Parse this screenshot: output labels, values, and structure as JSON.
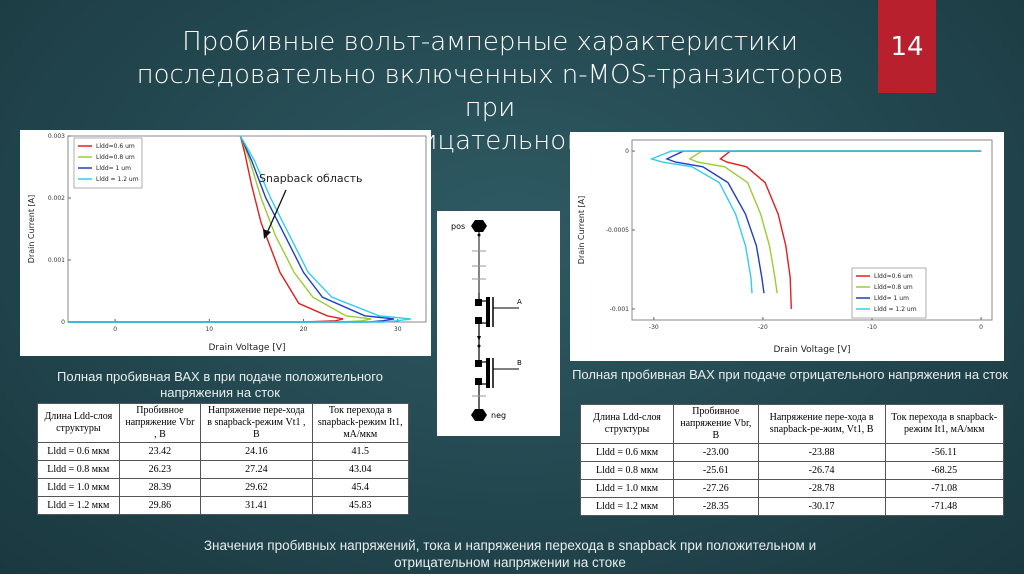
{
  "slide": {
    "title_lines": [
      "Пробивные вольт-амперные характеристики",
      "последовательно включенных n-MOS-транзисторов  при",
      "положительном и  отрицательном смещении на стоке"
    ],
    "number": "14"
  },
  "left_chart": {
    "chart_data": {
      "type": "line",
      "xlabel": "Drain Voltage [V]",
      "ylabel": "Drain Current [A]",
      "xlim": [
        -5,
        33
      ],
      "ylim": [
        0,
        0.003
      ],
      "x_ticks": [
        "0",
        "10",
        "20",
        "30"
      ],
      "x_tick_values": [
        0,
        10,
        20,
        30
      ],
      "y_ticks": [
        "0",
        "0.001",
        "0.002",
        "0.003"
      ],
      "y_tick_values": [
        0,
        0.001,
        0.002,
        0.003
      ],
      "legend_position": "top-left",
      "annotation": "Snapback область",
      "series": [
        {
          "name": "Lldd=0.6 um",
          "color": "#e02020",
          "x": [
            -5,
            10,
            20,
            23.4,
            24.2,
            22.5,
            19.5,
            17.5,
            15.5,
            14.5,
            13.8,
            13.3
          ],
          "y": [
            0,
            0,
            0,
            2e-05,
            5e-05,
            0.0001,
            0.0003,
            0.0008,
            0.0016,
            0.0022,
            0.0027,
            0.003
          ]
        },
        {
          "name": "Lldd=0.8 um",
          "color": "#9acd32",
          "x": [
            -5,
            10,
            24,
            26.2,
            27.2,
            24.5,
            21,
            19,
            17,
            15.5,
            14.3,
            13.3
          ],
          "y": [
            0,
            0,
            0,
            2e-05,
            5e-05,
            0.0001,
            0.0004,
            0.0008,
            0.0014,
            0.002,
            0.0026,
            0.003
          ]
        },
        {
          "name": "Lldd= 1 um",
          "color": "#1f3fbf",
          "x": [
            -5,
            10,
            27,
            28.4,
            29.6,
            26.5,
            22,
            20,
            18,
            16,
            14.5,
            13.3
          ],
          "y": [
            0,
            0,
            0,
            2e-05,
            5e-05,
            0.0001,
            0.0004,
            0.0008,
            0.0014,
            0.002,
            0.0026,
            0.003
          ]
        },
        {
          "name": "Lldd = 1.2 um",
          "color": "#33ccee",
          "x": [
            -5,
            10,
            28.5,
            29.9,
            31.4,
            28,
            23,
            20.5,
            18.5,
            16.5,
            14.8,
            13.3
          ],
          "y": [
            0,
            0,
            0,
            2e-05,
            5e-05,
            0.0001,
            0.0004,
            0.0008,
            0.0014,
            0.002,
            0.0026,
            0.003
          ]
        }
      ]
    }
  },
  "right_chart": {
    "chart_data": {
      "type": "line",
      "xlabel": "Drain Voltage [V]",
      "ylabel": "Drain Current [A]",
      "xlim": [
        -32,
        1
      ],
      "ylim": [
        -0.00107,
        7e-05
      ],
      "x_ticks": [
        "-30",
        "-20",
        "-10",
        "0"
      ],
      "x_tick_values": [
        -30,
        -20,
        -10,
        0
      ],
      "y_ticks": [
        "0",
        "-0.0005",
        "-0.001"
      ],
      "y_tick_values": [
        0,
        -0.0005,
        -0.001
      ],
      "legend_position": "bottom-right",
      "series": [
        {
          "name": "Lldd=0.6 um",
          "color": "#e02020",
          "x": [
            0,
            -23,
            -23.9,
            -23.3,
            -21.5,
            -19.8,
            -18.6,
            -17.9,
            -17.5,
            -17.4
          ],
          "y": [
            0,
            0,
            -5e-05,
            -7e-05,
            -0.0001,
            -0.0002,
            -0.0004,
            -0.0006,
            -0.0008,
            -0.001
          ]
        },
        {
          "name": "Lldd=0.8 um",
          "color": "#9acd32",
          "x": [
            0,
            -25.6,
            -26.7,
            -26,
            -23.5,
            -21.4,
            -20.2,
            -19.4,
            -18.9,
            -18.7
          ],
          "y": [
            0,
            0,
            -5e-05,
            -7e-05,
            -0.0001,
            -0.0002,
            -0.0004,
            -0.0006,
            -0.0008,
            -0.0009
          ]
        },
        {
          "name": "Lldd= 1 um",
          "color": "#1f3fbf",
          "x": [
            0,
            -27.3,
            -28.8,
            -28,
            -25.5,
            -23.2,
            -21.6,
            -20.6,
            -20.1,
            -19.9
          ],
          "y": [
            0,
            0,
            -5e-05,
            -7e-05,
            -0.0001,
            -0.0002,
            -0.0004,
            -0.0006,
            -0.0008,
            -0.0009
          ]
        },
        {
          "name": "Lldd = 1.2 um",
          "color": "#33ccee",
          "x": [
            0,
            -28.4,
            -30.2,
            -29.2,
            -26.5,
            -24,
            -22.5,
            -21.6,
            -21.1,
            -21.0
          ],
          "y": [
            0,
            0,
            -5e-05,
            -7e-05,
            -0.0001,
            -0.0002,
            -0.0004,
            -0.0006,
            -0.0008,
            -0.0009
          ]
        }
      ]
    }
  },
  "schematic": {
    "pos_label": "pos",
    "neg_label": "neg",
    "gate_a_label": "A",
    "gate_b_label": "B"
  },
  "left_caption": "Полная пробивная ВАХ в при подаче положительного напряжения на сток",
  "right_caption": "Полная пробивная ВАХ при подаче отрицательного напряжения на сток",
  "left_table": {
    "headers": [
      "Длина Ldd-слоя структуры",
      "Пробивное напряжение Vbr , В",
      "Напряжение пере-хода в snapback-режим  Vt1 , В",
      "Ток перехода в snapback-режим It1, мА/мкм"
    ],
    "rows": [
      [
        "Lldd = 0.6 мкм",
        "23.42",
        "24.16",
        "41.5"
      ],
      [
        "Lldd = 0.8 мкм",
        "26.23",
        "27.24",
        "43.04"
      ],
      [
        "Lldd = 1.0 мкм",
        "28.39",
        "29.62",
        "45.4"
      ],
      [
        "Lldd = 1.2 мкм",
        "29.86",
        "31.41",
        "45.83"
      ]
    ]
  },
  "right_table": {
    "headers": [
      "Длина Ldd-слоя структуры",
      "Пробивное напряжение Vbr, В",
      "Напряжение пере-хода в snapback-ре-жим,  Vt1, В",
      "Ток перехода в snapback-режим It1, мА/мкм"
    ],
    "rows": [
      [
        "Lldd = 0.6 мкм",
        "-23.00",
        "-23.88",
        "-56.11"
      ],
      [
        "Lldd = 0.8 мкм",
        "-25.61",
        "-26.74",
        "-68.25"
      ],
      [
        "Lldd = 1.0 мкм",
        "-27.26",
        "-28.78",
        "-71.08"
      ],
      [
        "Lldd = 1.2 мкм",
        "-28.35",
        "-30.17",
        "-71.48"
      ]
    ]
  },
  "bottom_caption": "Значения пробивных напряжений, тока и напряжения перехода в snapback при положительном и отрицательном напряжении на стоке"
}
